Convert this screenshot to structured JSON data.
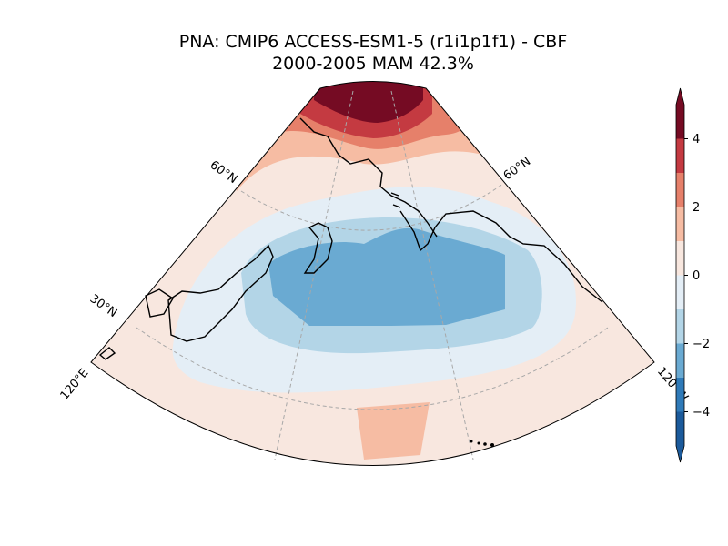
{
  "title": {
    "line1": "PNA: CMIP6 ACCESS-ESM1-5 (r1i1p1f1) - CBF",
    "line2": "2000-2005 MAM 42.3%"
  },
  "map": {
    "projection": "conic sector, North Pacific",
    "lat_labels": [
      "60°N",
      "60°N",
      "30°N"
    ],
    "lon_labels": [
      "120°E",
      "120°W"
    ],
    "colors": {
      "neg_4_5": "#1b5a9b",
      "neg_3_4": "#2f7ab8",
      "neg_2_3": "#6aaad2",
      "neg_1_2": "#b3d5e7",
      "neg_0_1": "#e4eef6",
      "pos_0_1": "#f8e7df",
      "pos_1_2": "#f6bca3",
      "pos_2_3": "#e6806a",
      "pos_3_4": "#c43a41",
      "pos_4_5": "#750b23"
    }
  },
  "colorbar": {
    "ticks": [
      "4",
      "2",
      "0",
      "−2",
      "−4"
    ],
    "tick_values": [
      4,
      2,
      0,
      -2,
      -4
    ],
    "range": [
      -5,
      5
    ],
    "levels": [
      -5,
      -4,
      -3,
      -2,
      -1,
      0,
      1,
      2,
      3,
      4,
      5
    ]
  }
}
